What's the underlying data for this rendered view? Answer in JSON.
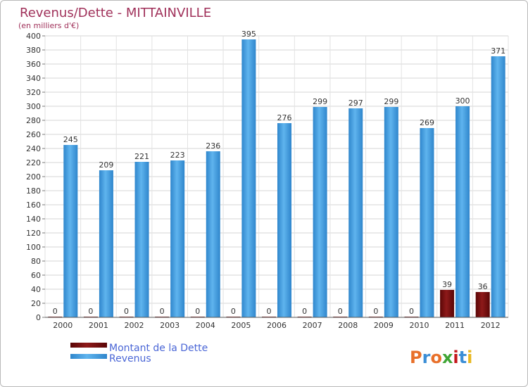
{
  "chart_data": {
    "type": "bar",
    "title": "Revenus/Dette - MITTAINVILLE",
    "subtitle": "(en milliers d'€)",
    "categories": [
      "2000",
      "2001",
      "2002",
      "2003",
      "2004",
      "2005",
      "2006",
      "2007",
      "2008",
      "2009",
      "2010",
      "2011",
      "2012"
    ],
    "series": [
      {
        "name": "Montant de la Dette",
        "color": "#7a0b0b",
        "values": [
          0,
          0,
          0,
          0,
          0,
          0,
          0,
          0,
          0,
          0,
          0,
          39,
          36
        ]
      },
      {
        "name": "Revenus",
        "color": "#4da6e8",
        "values": [
          245,
          209,
          221,
          223,
          236,
          395,
          276,
          299,
          297,
          299,
          269,
          300,
          371
        ]
      }
    ],
    "ylim": [
      0,
      400
    ],
    "ytick_step": 20,
    "grid": true,
    "legend_position": "bottom-left"
  },
  "branding": {
    "logo_text": "Proxiti"
  }
}
